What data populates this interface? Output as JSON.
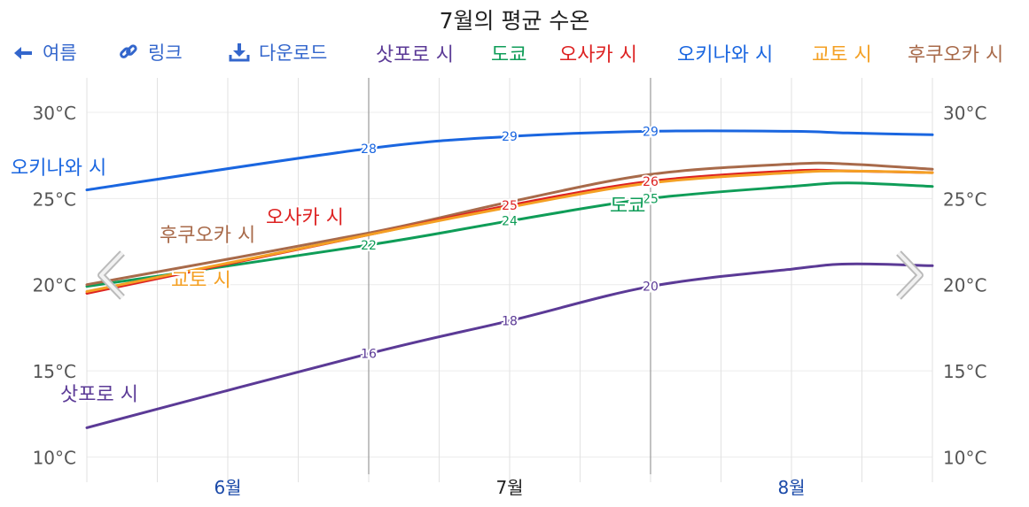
{
  "title": "7월의 평균 수온",
  "toolbar": {
    "back_label": "여름",
    "link_label": "링크",
    "download_label": "다운로드"
  },
  "legend": [
    {
      "name": "삿포로 시",
      "color": "#5b3a96"
    },
    {
      "name": "도쿄",
      "color": "#0f9d58"
    },
    {
      "name": "오사카 시",
      "color": "#dd2222"
    },
    {
      "name": "오키나와 시",
      "color": "#1a66e0"
    },
    {
      "name": "교토 시",
      "color": "#f4a024"
    },
    {
      "name": "후쿠오카 시",
      "color": "#a86a4a"
    }
  ],
  "nav": {
    "prev_icon": "chevron-left-icon",
    "next_icon": "chevron-right-icon"
  },
  "chart_data": {
    "type": "line",
    "title": "7월의 평균 수온",
    "x_labels": [
      "6월",
      "7월",
      "8월"
    ],
    "x_label_selected": "7월",
    "xlim": [
      5.5,
      8.5
    ],
    "ylim": [
      9,
      32
    ],
    "yticks": [
      10,
      15,
      20,
      25,
      30
    ],
    "y_unit": "°C",
    "grid": true,
    "series": [
      {
        "name": "삿포로 시",
        "color": "#5b3a96",
        "x": [
          5.5,
          6.5,
          7.0,
          7.5,
          8.0,
          8.2,
          8.5
        ],
        "values": [
          11.7,
          16.0,
          17.9,
          19.9,
          20.9,
          21.2,
          21.1
        ],
        "data_labels": [
          {
            "x": 6.5,
            "text": "16"
          },
          {
            "x": 7.0,
            "text": "18"
          },
          {
            "x": 7.5,
            "text": "20"
          }
        ]
      },
      {
        "name": "도쿄",
        "color": "#0f9d58",
        "x": [
          5.5,
          6.5,
          7.0,
          7.5,
          8.0,
          8.2,
          8.5
        ],
        "values": [
          19.9,
          22.3,
          23.7,
          25.0,
          25.7,
          25.9,
          25.7
        ],
        "data_labels": [
          {
            "x": 6.5,
            "text": "22"
          },
          {
            "x": 7.0,
            "text": "24"
          },
          {
            "x": 7.5,
            "text": "25"
          }
        ]
      },
      {
        "name": "오사카 시",
        "color": "#dd2222",
        "x": [
          5.5,
          6.5,
          7.0,
          7.5,
          8.0,
          8.2,
          8.5
        ],
        "values": [
          19.5,
          22.9,
          24.6,
          26.0,
          26.6,
          26.6,
          26.5
        ],
        "data_labels": [
          {
            "x": 7.0,
            "text": "25"
          },
          {
            "x": 7.5,
            "text": "26"
          }
        ]
      },
      {
        "name": "오키나와 시",
        "color": "#1a66e0",
        "x": [
          5.5,
          6.5,
          7.0,
          7.5,
          8.0,
          8.2,
          8.5
        ],
        "values": [
          25.5,
          27.9,
          28.6,
          28.9,
          28.9,
          28.8,
          28.7
        ],
        "data_labels": [
          {
            "x": 6.5,
            "text": "28"
          },
          {
            "x": 7.0,
            "text": "29"
          },
          {
            "x": 7.5,
            "text": "29"
          }
        ]
      },
      {
        "name": "교토 시",
        "color": "#f4a024",
        "x": [
          5.5,
          6.5,
          7.0,
          7.5,
          8.0,
          8.2,
          8.5
        ],
        "values": [
          19.6,
          22.9,
          24.5,
          25.9,
          26.5,
          26.6,
          26.5
        ],
        "data_labels": []
      },
      {
        "name": "후쿠오카 시",
        "color": "#a86a4a",
        "x": [
          5.5,
          6.5,
          7.0,
          7.5,
          8.0,
          8.2,
          8.5
        ],
        "values": [
          20.0,
          23.0,
          24.8,
          26.4,
          27.0,
          27.0,
          26.7
        ],
        "data_labels": []
      }
    ],
    "annotations": [
      {
        "text": "오키나와 시",
        "color": "#1a66e0"
      },
      {
        "text": "오사카 시",
        "color": "#dd2222"
      },
      {
        "text": "후쿠오카 시",
        "color": "#a86a4a"
      },
      {
        "text": "교토 시",
        "color": "#f4a024"
      },
      {
        "text": "도쿄",
        "color": "#0f9d58"
      },
      {
        "text": "삿포로 시",
        "color": "#5b3a96"
      }
    ]
  }
}
